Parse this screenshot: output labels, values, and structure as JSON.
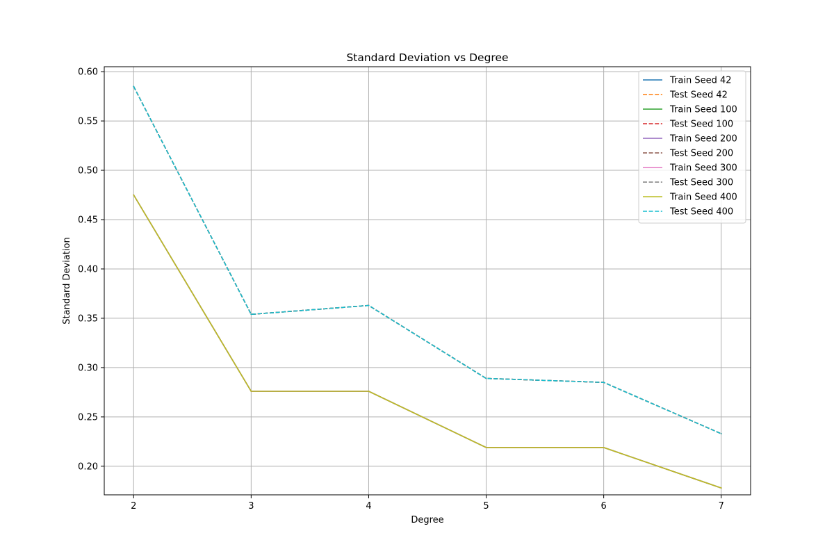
{
  "chart_data": {
    "type": "line",
    "title": "Standard Deviation vs Degree",
    "xlabel": "Degree",
    "ylabel": "Standard Deviation",
    "x": [
      2,
      3,
      4,
      5,
      6,
      7
    ],
    "xlim": [
      1.75,
      7.25
    ],
    "ylim": [
      0.171,
      0.605
    ],
    "xticks": [
      2,
      3,
      4,
      5,
      6,
      7
    ],
    "yticks": [
      0.2,
      0.25,
      0.3,
      0.35,
      0.4,
      0.45,
      0.5,
      0.55,
      0.6
    ],
    "ytick_labels": [
      "0.20",
      "0.25",
      "0.30",
      "0.35",
      "0.40",
      "0.45",
      "0.50",
      "0.55",
      "0.60"
    ],
    "grid": true,
    "legend_position": "top-right",
    "series": [
      {
        "name": "Train Seed 42",
        "color": "#1f77b4",
        "dash": "solid",
        "values": [
          0.475,
          0.276,
          0.276,
          0.219,
          0.219,
          0.178
        ]
      },
      {
        "name": "Test Seed 42",
        "color": "#ff7f0e",
        "dash": "dashed",
        "values": [
          0.585,
          0.354,
          0.363,
          0.289,
          0.285,
          0.233
        ]
      },
      {
        "name": "Train Seed 100",
        "color": "#2ca02c",
        "dash": "solid",
        "values": [
          0.475,
          0.276,
          0.276,
          0.219,
          0.219,
          0.178
        ]
      },
      {
        "name": "Test Seed 100",
        "color": "#d62728",
        "dash": "dashed",
        "values": [
          0.585,
          0.354,
          0.363,
          0.289,
          0.285,
          0.233
        ]
      },
      {
        "name": "Train Seed 200",
        "color": "#9467bd",
        "dash": "solid",
        "values": [
          0.475,
          0.276,
          0.276,
          0.219,
          0.219,
          0.178
        ]
      },
      {
        "name": "Test Seed 200",
        "color": "#8c564b",
        "dash": "dashed",
        "values": [
          0.585,
          0.354,
          0.363,
          0.289,
          0.285,
          0.233
        ]
      },
      {
        "name": "Train Seed 300",
        "color": "#e377c2",
        "dash": "solid",
        "values": [
          0.475,
          0.276,
          0.276,
          0.219,
          0.219,
          0.178
        ]
      },
      {
        "name": "Test Seed 300",
        "color": "#7f7f7f",
        "dash": "dashed",
        "values": [
          0.585,
          0.354,
          0.363,
          0.289,
          0.285,
          0.233
        ]
      },
      {
        "name": "Train Seed 400",
        "color": "#bcbd22",
        "dash": "solid",
        "values": [
          0.475,
          0.276,
          0.276,
          0.219,
          0.219,
          0.178
        ]
      },
      {
        "name": "Test Seed 400",
        "color": "#17becf",
        "dash": "dashed",
        "values": [
          0.585,
          0.354,
          0.363,
          0.289,
          0.285,
          0.233
        ]
      }
    ]
  }
}
